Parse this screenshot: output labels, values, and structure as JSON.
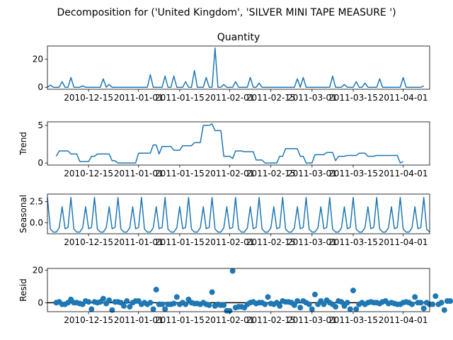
{
  "figure": {
    "suptitle": "Decomposition for ('United Kingdom', 'SILVER MINI TAPE MEASURE ')"
  },
  "x_ticks": [
    "2010-12-15",
    "2011-01-01",
    "2011-01-15",
    "2011-02-01",
    "2011-02-15",
    "2011-03-01",
    "2011-03-15",
    "2011-04-01"
  ],
  "colors": {
    "series": "#1f77b4",
    "axis": "#000000"
  },
  "chart_data": [
    {
      "type": "line",
      "title": "Quantity",
      "ylabel": "",
      "x_start": "2010-12-01",
      "ylim": [
        -1.4,
        29.4
      ],
      "yticks": [
        "0",
        "20"
      ],
      "ytick_values": [
        0,
        20
      ],
      "values": [
        0,
        1.6,
        0,
        0,
        0,
        4,
        0,
        0,
        7,
        0,
        0,
        0,
        1,
        0,
        0,
        0,
        0,
        0,
        0,
        6,
        0,
        2,
        0,
        0,
        0,
        0,
        0,
        0,
        0,
        0,
        0,
        0,
        0,
        0,
        0,
        9,
        0,
        0,
        0,
        0,
        8,
        0,
        0,
        8,
        0,
        0,
        0,
        4,
        0,
        0,
        12,
        0,
        0,
        0,
        7,
        0,
        0,
        28,
        0,
        0,
        2,
        0,
        0,
        0,
        4,
        0,
        0,
        0,
        0,
        7,
        0,
        0,
        3,
        0,
        0,
        0,
        0,
        0,
        0,
        0,
        0,
        0,
        0,
        0,
        0,
        6,
        0,
        7,
        0,
        0,
        0,
        0,
        0,
        0,
        0,
        0,
        0,
        8,
        0,
        0,
        0,
        2,
        0,
        0,
        0,
        4,
        0,
        0,
        3,
        0,
        0,
        0,
        0,
        6,
        0,
        0,
        0,
        0,
        0,
        0,
        0,
        7,
        0,
        0,
        0,
        0,
        0,
        0,
        1
      ]
    },
    {
      "type": "line",
      "title": "",
      "ylabel": "Trend",
      "x_start": "2010-12-04",
      "ylim": [
        -0.27,
        5.47
      ],
      "yticks": [
        "0",
        "5"
      ],
      "ytick_values": [
        0,
        5
      ],
      "values": [
        0.9,
        1.6,
        1.6,
        1.6,
        1.6,
        1.2,
        1.2,
        1.2,
        0.2,
        0.2,
        0.2,
        0.2,
        0.9,
        0.9,
        1.2,
        1.2,
        1.2,
        1.2,
        1.2,
        0.3,
        0.3,
        0,
        0,
        0,
        0,
        0,
        0,
        0,
        1.3,
        1.3,
        1.3,
        1.3,
        1.3,
        2.4,
        2.4,
        1.2,
        2.2,
        2.2,
        2.2,
        2.2,
        1.7,
        1.7,
        1.7,
        2.3,
        2.3,
        2.3,
        2.3,
        2.7,
        2.7,
        2.7,
        5,
        5,
        5,
        5.2,
        4.3,
        4.3,
        4.3,
        0.9,
        0.9,
        0.9,
        0.6,
        1.6,
        1.6,
        1.6,
        1.5,
        1.5,
        1.5,
        1.5,
        0.4,
        0.4,
        0.4,
        0,
        0,
        0,
        0,
        0,
        0.9,
        0.9,
        1.9,
        1.9,
        1.9,
        1.9,
        1.9,
        0.9,
        0.9,
        0,
        0,
        0,
        1.1,
        1.1,
        1.1,
        1.1,
        1.4,
        1.4,
        1.4,
        0.3,
        0.9,
        0.9,
        0.9,
        1,
        1,
        1,
        1,
        1.3,
        1.3,
        1.3,
        0.9,
        0.9,
        0.9,
        1,
        1,
        1,
        1,
        1,
        1,
        1,
        1,
        0,
        0.2
      ]
    },
    {
      "type": "line",
      "title": "",
      "ylabel": "Seasonal",
      "x_start": "2010-12-01",
      "ylim": [
        -1.3,
        3.4
      ],
      "yticks": [
        "0.0",
        "2.5"
      ],
      "ytick_values": [
        0,
        2.5
      ],
      "pattern": [
        3.0,
        -0.75,
        -1.1,
        -1.1,
        -0.6,
        1.9,
        -0.7,
        -0.55
      ],
      "pattern_start_index": 0
    },
    {
      "type": "scatter",
      "title": "",
      "ylabel": "Resid",
      "x_start": "2010-12-04",
      "ylim": [
        -5.5,
        21
      ],
      "yticks": [
        "0",
        "20"
      ],
      "ytick_values": [
        0,
        20
      ],
      "values": [
        0,
        0.5,
        -1,
        -1,
        0,
        2,
        0,
        0,
        -0.5,
        -1,
        1,
        0.5,
        -4,
        0.5,
        0,
        0.5,
        2.5,
        -0.5,
        1.5,
        -4.5,
        0.5,
        0.5,
        0,
        -2,
        1,
        -2.5,
        0,
        1,
        1,
        -1,
        0,
        -1,
        0,
        -4,
        8,
        -1,
        -1,
        -4,
        -1,
        -1,
        -0.5,
        3.5,
        -1,
        0,
        -1,
        2,
        0,
        -0.5,
        -0.5,
        -1,
        0,
        -1,
        -1.5,
        6.5,
        -2,
        -1,
        -1.5,
        -1.5,
        -5,
        -5,
        19.5,
        -3,
        -2.5,
        -2.5,
        -3,
        -1,
        0,
        0.5,
        -0.5,
        0,
        0,
        -1,
        3.5,
        -0.5,
        -1,
        0,
        -2,
        1,
        0.5,
        0.5,
        0,
        -1.5,
        1,
        -3,
        1,
        0,
        -1,
        -4,
        5,
        -1,
        1,
        -1,
        1.5,
        0,
        -1,
        -2.5,
        1,
        0.5,
        -2,
        0,
        -4,
        7.5,
        -4,
        -1,
        0,
        -1,
        0,
        0.5,
        0,
        0,
        -0.5,
        0.5,
        1,
        -0.5,
        0,
        -0.5,
        -1,
        -1,
        0,
        0.5,
        0,
        -1,
        3.5,
        0,
        0,
        -3.5,
        0,
        -1,
        -1,
        4,
        -1,
        0,
        -4.5,
        1,
        1
      ]
    }
  ]
}
